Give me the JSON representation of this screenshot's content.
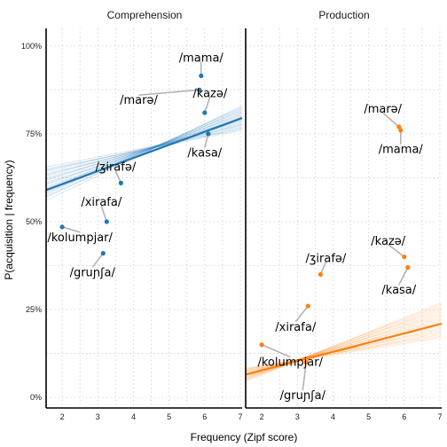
{
  "chart_data": {
    "type": "line",
    "xlabel": "Frequency (Zipf score)",
    "ylabel": "P(acquisition | frequency)",
    "xlim": [
      1.55,
      7.05
    ],
    "ylim": [
      -0.03,
      1.05
    ],
    "x_ticks": [
      2,
      3,
      4,
      5,
      6,
      7
    ],
    "y_ticks": [
      0,
      0.25,
      0.5,
      0.75,
      1.0
    ],
    "y_tick_labels": [
      "0%",
      "25%",
      "50%",
      "75%",
      "100%"
    ],
    "grid": true,
    "panels": [
      {
        "title": "Comprehension",
        "color": "#1f77b4",
        "fit": {
          "x": [
            1.55,
            7.05
          ],
          "y": [
            0.59,
            0.795
          ]
        },
        "band": {
          "lower": [
            0.56,
            0.76
          ],
          "upper": [
            0.66,
            0.83
          ]
        },
        "points": [
          {
            "word": "/mama/",
            "x": 5.9,
            "y": 0.915,
            "label_x": 5.9,
            "label_y": 0.965
          },
          {
            "word": "/marə/",
            "x": 5.85,
            "y": 0.875,
            "label_x": 4.15,
            "label_y": 0.845
          },
          {
            "word": "/kazə/",
            "x": 6.0,
            "y": 0.81,
            "label_x": 6.15,
            "label_y": 0.865
          },
          {
            "word": "/kasa/",
            "x": 6.1,
            "y": 0.75,
            "label_x": 6.0,
            "label_y": 0.695
          },
          {
            "word": "/ʒirafə/",
            "x": 3.65,
            "y": 0.61,
            "label_x": 3.5,
            "label_y": 0.655
          },
          {
            "word": "/xirafa/",
            "x": 3.25,
            "y": 0.5,
            "label_x": 3.1,
            "label_y": 0.555
          },
          {
            "word": "/kolumpjar/",
            "x": 2.0,
            "y": 0.485,
            "label_x": 2.5,
            "label_y": 0.455
          },
          {
            "word": "/gruɲʃa/",
            "x": 3.15,
            "y": 0.41,
            "label_x": 2.85,
            "label_y": 0.355
          }
        ]
      },
      {
        "title": "Production",
        "color": "#ff7f0e",
        "fit": {
          "x": [
            1.55,
            7.05
          ],
          "y": [
            0.065,
            0.21
          ]
        },
        "band": {
          "lower": [
            0.045,
            0.17
          ],
          "upper": [
            0.085,
            0.27
          ]
        },
        "points": [
          {
            "word": "/marə/",
            "x": 5.85,
            "y": 0.77,
            "label_x": 5.4,
            "label_y": 0.82
          },
          {
            "word": "/mama/",
            "x": 5.9,
            "y": 0.76,
            "label_x": 5.9,
            "label_y": 0.705
          },
          {
            "word": "/kazə/",
            "x": 6.0,
            "y": 0.4,
            "label_x": 5.55,
            "label_y": 0.445
          },
          {
            "word": "/kasa/",
            "x": 6.1,
            "y": 0.37,
            "label_x": 5.85,
            "label_y": 0.305
          },
          {
            "word": "/ʒirafə/",
            "x": 3.65,
            "y": 0.35,
            "label_x": 3.8,
            "label_y": 0.395
          },
          {
            "word": "/xirafa/",
            "x": 3.3,
            "y": 0.26,
            "label_x": 2.95,
            "label_y": 0.2
          },
          {
            "word": "/kolumpjar/",
            "x": 2.0,
            "y": 0.15,
            "label_x": 2.8,
            "label_y": 0.1
          },
          {
            "word": "/gruɲʃa/",
            "x": 3.25,
            "y": 0.1,
            "label_x": 3.15,
            "label_y": 0.005
          }
        ]
      }
    ]
  }
}
